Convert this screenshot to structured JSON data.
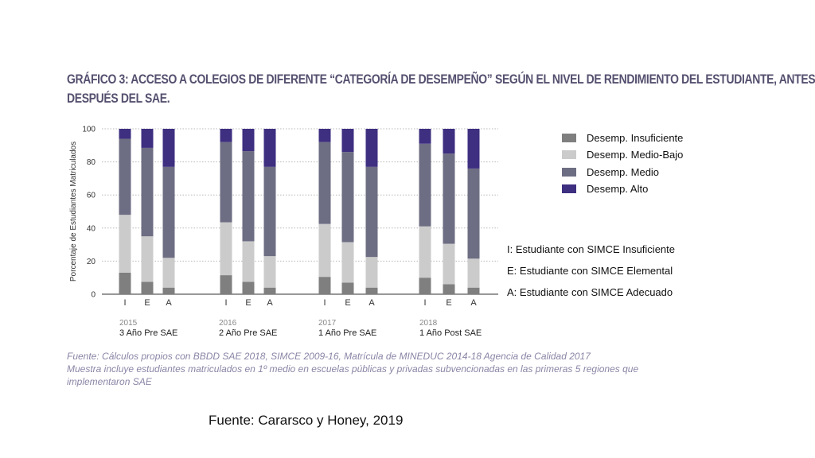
{
  "title_lines": [
    "GRÁFICO 3: ACCESO A COLEGIOS DE DIFERENTE “CATEGORÍA DE DESEMPEÑO” SEGÚN EL NIVEL DE RENDIMIENTO DEL ESTUDIANTE, ANTES Y",
    "DESPUÉS DEL SAE."
  ],
  "source_lines": [
    "Fuente: Cálculos propios con BBDD SAE 2018, SIMCE 2009-16, Matrícula de MINEDUC 2014-18 Agencia de Calidad 2017",
    "Muestra incluye estudiantes matriculados en 1º medio en escuelas públicas y privadas subvencionadas en las primeras 5 regiones que",
    "implementaron SAE"
  ],
  "citation": "Fuente: Cararsco y Honey, 2019",
  "annotations": [
    "I: Estudiante con SIMCE Insuficiente",
    "E: Estudiante con SIMCE Elemental",
    "A: Estudiante con SIMCE Adecuado"
  ],
  "chart_data": {
    "type": "bar",
    "stacked": true,
    "ylabel": "Porcentaje de Estudiantes Matriculados",
    "ylim": [
      0,
      100
    ],
    "yticks": [
      0,
      20,
      40,
      60,
      80,
      100
    ],
    "grid": true,
    "legend_position": "right",
    "groups": [
      {
        "year": "2015",
        "label": "3 Año Pre SAE"
      },
      {
        "year": "2016",
        "label": "2 Año Pre SAE"
      },
      {
        "year": "2017",
        "label": "1 Año Pre SAE"
      },
      {
        "year": "2018",
        "label": "1 Año Post SAE"
      }
    ],
    "bar_labels": [
      "I",
      "E",
      "A"
    ],
    "categories": [
      "2015 I",
      "2015 E",
      "2015 A",
      "2016 I",
      "2016 E",
      "2016 A",
      "2017 I",
      "2017 E",
      "2017 A",
      "2018 I",
      "2018 E",
      "2018 A"
    ],
    "series": [
      {
        "name": "Desemp. Insuficiente",
        "color": "#7f7f7f",
        "values": [
          13,
          7.5,
          4,
          11.5,
          7.5,
          4,
          10.5,
          7,
          4,
          10,
          6,
          4
        ]
      },
      {
        "name": "Desemp. Medio-Bajo",
        "color": "#cbcbcb",
        "values": [
          35,
          27.5,
          18,
          32,
          24.5,
          19,
          32,
          24.5,
          18.5,
          31,
          24.5,
          17.5
        ]
      },
      {
        "name": "Desemp. Medio",
        "color": "#6d6d83",
        "values": [
          46,
          53.5,
          55,
          48.5,
          54.5,
          54,
          49.5,
          54.5,
          54.5,
          50,
          54.5,
          54.5
        ]
      },
      {
        "name": "Desemp. Alto",
        "color": "#3e2f80",
        "values": [
          6,
          11.5,
          23,
          8,
          13.5,
          23,
          8,
          14,
          23,
          9,
          15,
          24
        ]
      }
    ]
  }
}
